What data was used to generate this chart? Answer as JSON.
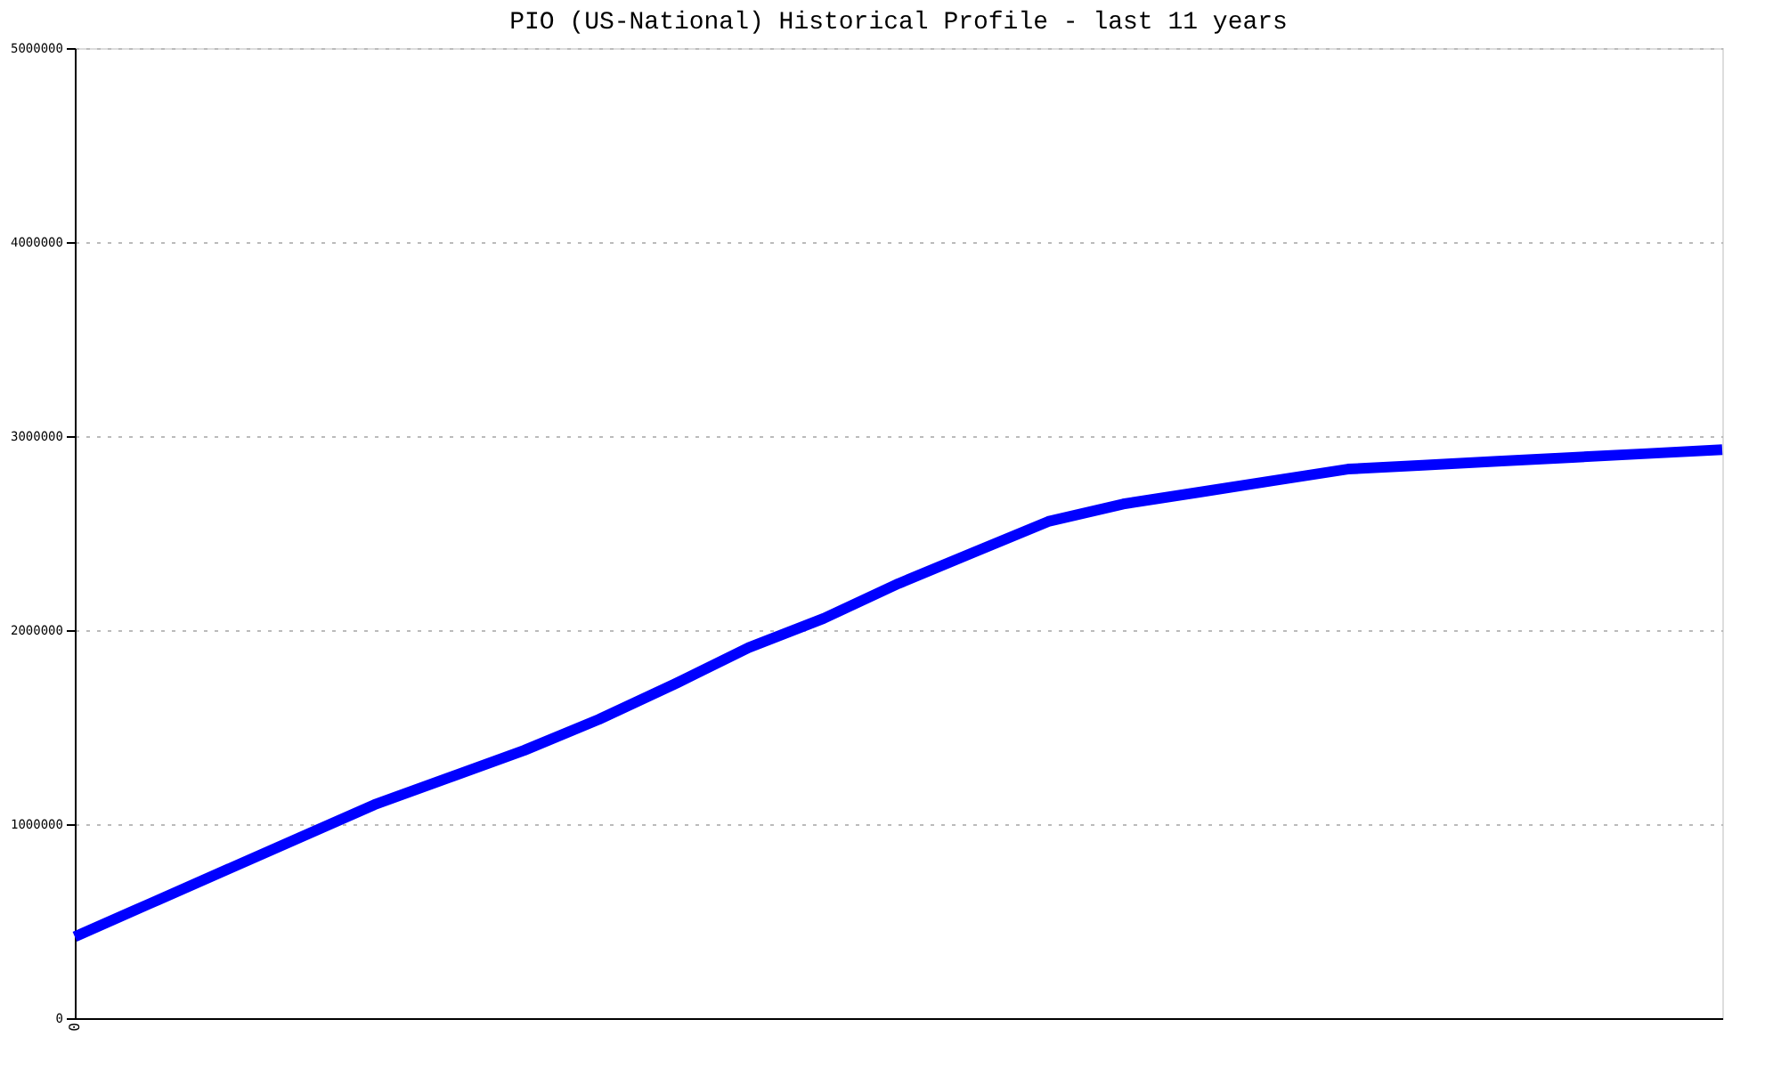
{
  "chart_data": {
    "type": "line",
    "title": "PIO (US-National) Historical Profile - last 11 years",
    "categories": [
      "0",
      null,
      null,
      null,
      null,
      null,
      null,
      null,
      null,
      null,
      null,
      null,
      null,
      null,
      null,
      null,
      null,
      null,
      null,
      null,
      null,
      null,
      null
    ],
    "series": [
      {
        "color": "#0000ff",
        "values": [
          420000,
          590000,
          760000,
          930000,
          1100000,
          1240000,
          1380000,
          1540000,
          1720000,
          1910000,
          2060000,
          2240000,
          2400000,
          2560000,
          2650000,
          2710000,
          2770000,
          2830000,
          2850000,
          2870000,
          2890000,
          2910000,
          2930000
        ]
      }
    ],
    "ylim": [
      0,
      5000000
    ],
    "yticks": [
      0,
      1000000,
      2000000,
      3000000,
      4000000,
      5000000
    ],
    "grid": "y",
    "legend": false,
    "marker": "none",
    "line_style": "solid"
  }
}
